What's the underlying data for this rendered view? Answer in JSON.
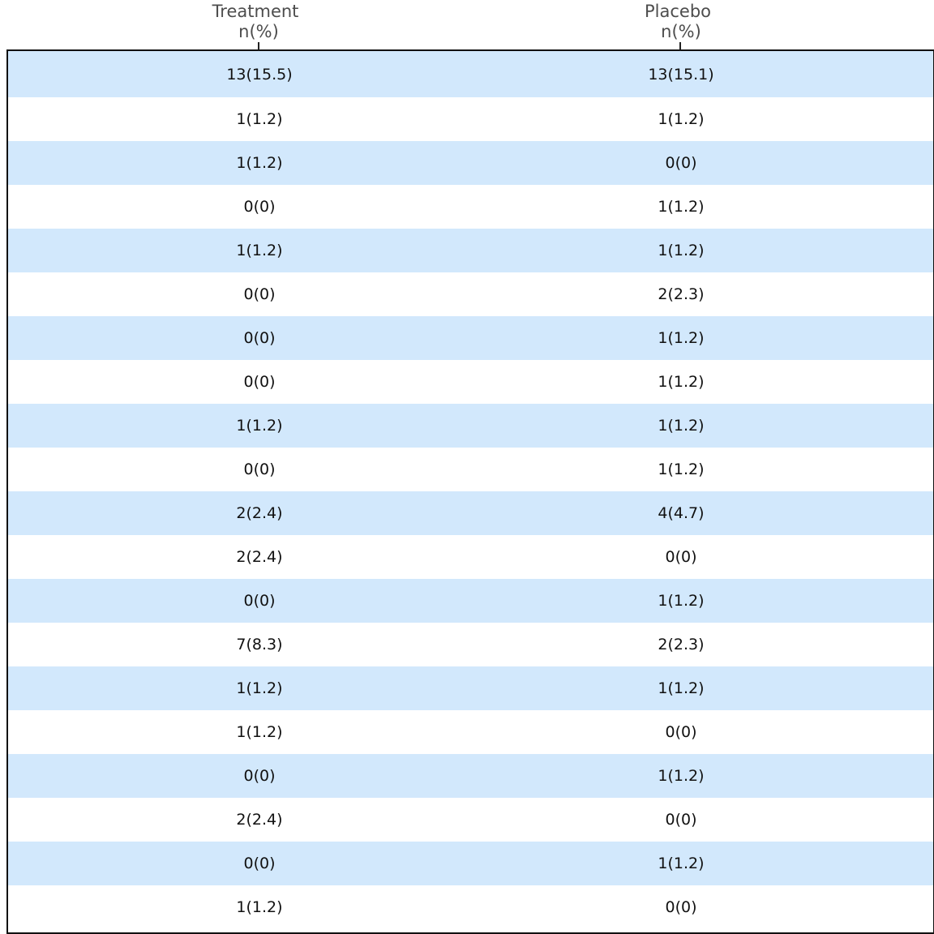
{
  "chart_data": {
    "type": "table",
    "columns": [
      {
        "name": "Treatment",
        "unit": "n(%)"
      },
      {
        "name": "Placebo",
        "unit": "n(%)"
      }
    ],
    "rows": [
      [
        "13(15.5)",
        "13(15.1)"
      ],
      [
        "1(1.2)",
        "1(1.2)"
      ],
      [
        "1(1.2)",
        "0(0)"
      ],
      [
        "0(0)",
        "1(1.2)"
      ],
      [
        "1(1.2)",
        "1(1.2)"
      ],
      [
        "0(0)",
        "2(2.3)"
      ],
      [
        "0(0)",
        "1(1.2)"
      ],
      [
        "0(0)",
        "1(1.2)"
      ],
      [
        "1(1.2)",
        "1(1.2)"
      ],
      [
        "0(0)",
        "1(1.2)"
      ],
      [
        "2(2.4)",
        "4(4.7)"
      ],
      [
        "2(2.4)",
        "0(0)"
      ],
      [
        "0(0)",
        "1(1.2)"
      ],
      [
        "7(8.3)",
        "2(2.3)"
      ],
      [
        "1(1.2)",
        "1(1.2)"
      ],
      [
        "1(1.2)",
        "0(0)"
      ],
      [
        "0(0)",
        "1(1.2)"
      ],
      [
        "2(2.4)",
        "0(0)"
      ],
      [
        "0(0)",
        "1(1.2)"
      ],
      [
        "1(1.2)",
        "0(0)"
      ]
    ],
    "row_stripe_color": "#d2e8fc",
    "border_color": "#111111"
  }
}
